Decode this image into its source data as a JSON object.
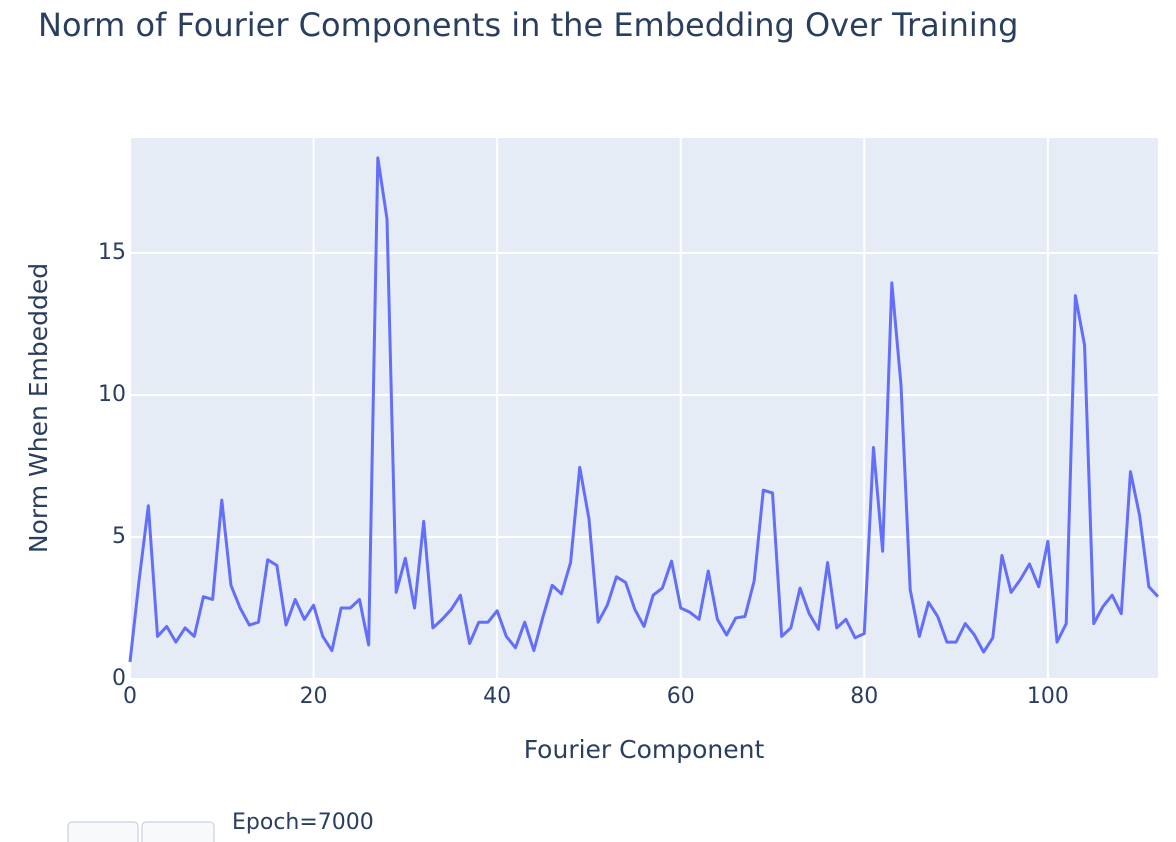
{
  "chart_data": {
    "type": "line",
    "title": "Norm of Fourier Components in the Embedding Over Training",
    "xlabel": "Fourier Component",
    "ylabel": "Norm When Embedded",
    "x": [
      0,
      1,
      2,
      3,
      4,
      5,
      6,
      7,
      8,
      9,
      10,
      11,
      12,
      13,
      14,
      15,
      16,
      17,
      18,
      19,
      20,
      21,
      22,
      23,
      24,
      25,
      26,
      27,
      28,
      29,
      30,
      31,
      32,
      33,
      34,
      35,
      36,
      37,
      38,
      39,
      40,
      41,
      42,
      43,
      44,
      45,
      46,
      47,
      48,
      49,
      50,
      51,
      52,
      53,
      54,
      55,
      56,
      57,
      58,
      59,
      60,
      61,
      62,
      63,
      64,
      65,
      66,
      67,
      68,
      69,
      70,
      71,
      72,
      73,
      74,
      75,
      76,
      77,
      78,
      79,
      80,
      81,
      82,
      83,
      84,
      85,
      86,
      87,
      88,
      89,
      90,
      91,
      92,
      93,
      94,
      95,
      96,
      97,
      98,
      99,
      100,
      101,
      102,
      103,
      104,
      105,
      106,
      107,
      108,
      109,
      110,
      111,
      112
    ],
    "series": [
      {
        "name": "Norm",
        "color": "#636efa",
        "values": [
          0.6,
          3.5,
          6.1,
          1.5,
          1.85,
          1.3,
          1.8,
          1.5,
          2.9,
          2.8,
          6.3,
          3.3,
          2.5,
          1.9,
          2.0,
          4.2,
          4.0,
          1.9,
          2.8,
          2.1,
          2.6,
          1.5,
          1.0,
          2.5,
          2.5,
          2.8,
          1.2,
          18.35,
          16.2,
          3.05,
          4.25,
          2.5,
          5.55,
          1.8,
          2.1,
          2.45,
          2.95,
          1.25,
          2.0,
          2.0,
          2.4,
          1.5,
          1.1,
          2.0,
          1.0,
          2.2,
          3.3,
          3.0,
          4.1,
          7.45,
          5.65,
          2.0,
          2.6,
          3.6,
          3.4,
          2.45,
          1.85,
          2.95,
          3.2,
          4.15,
          2.5,
          2.35,
          2.1,
          3.8,
          2.1,
          1.55,
          2.15,
          2.2,
          3.45,
          6.65,
          6.55,
          1.5,
          1.8,
          3.2,
          2.3,
          1.75,
          4.1,
          1.8,
          2.1,
          1.45,
          1.6,
          8.15,
          4.5,
          13.95,
          10.35,
          3.15,
          1.5,
          2.7,
          2.2,
          1.3,
          1.3,
          1.95,
          1.55,
          0.95,
          1.45,
          4.35,
          3.05,
          3.5,
          4.05,
          3.25,
          4.85,
          1.3,
          1.95,
          13.5,
          11.75,
          1.95,
          2.55,
          2.95,
          2.3,
          7.3,
          5.75,
          3.25,
          2.9
        ]
      }
    ],
    "xlim": [
      0,
      112
    ],
    "ylim": [
      0,
      19.05
    ],
    "xticks": [
      0,
      20,
      40,
      60,
      80,
      100
    ],
    "yticks": [
      0,
      5,
      10,
      15
    ],
    "grid": true,
    "slider_label": "Epoch=7000"
  }
}
